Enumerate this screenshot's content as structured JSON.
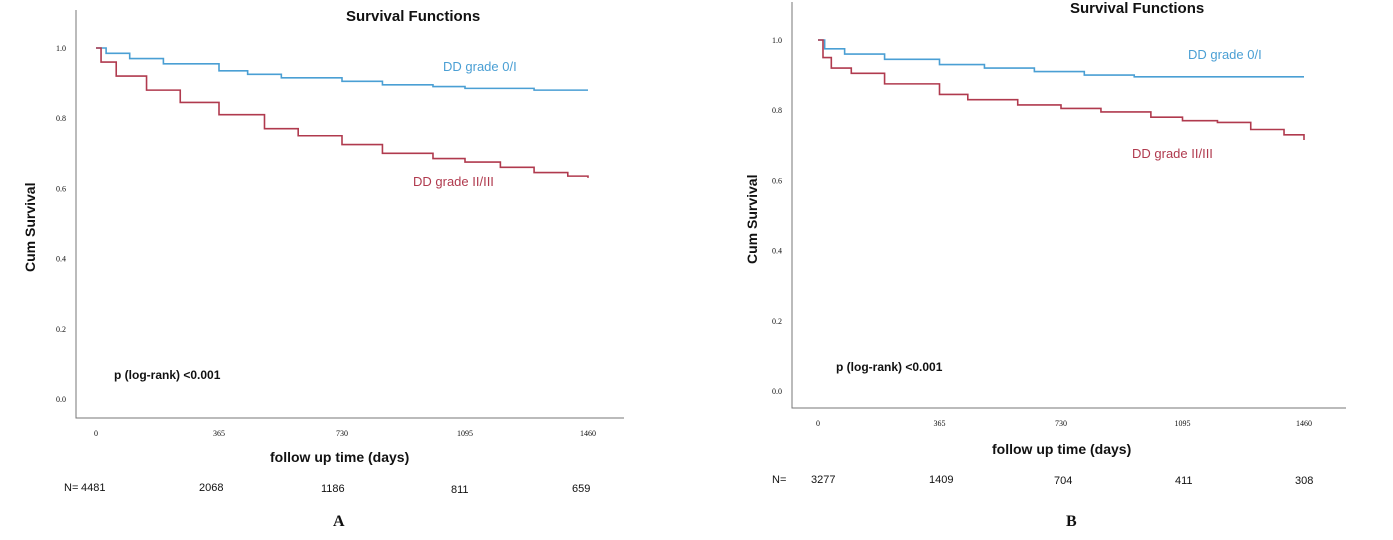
{
  "chart_data": [
    {
      "type": "line",
      "panel_label": "A",
      "title": "Survival Functions",
      "xlabel": "follow up time (days)",
      "ylabel": "Cum Survival",
      "xticks": [
        0,
        365,
        730,
        1095,
        1460
      ],
      "yticks": [
        "0.0",
        "0.2",
        "0.4",
        "0.6",
        "0.8",
        "1.0"
      ],
      "xlim": [
        0,
        1460
      ],
      "ylim": [
        0.0,
        1.0
      ],
      "annotation": "p (log-rank) <0.001",
      "colors": {
        "grade_0_1": "#4a9fd4",
        "grade_2_3": "#b03a4e"
      },
      "series": [
        {
          "name": "DD grade 0/I",
          "x": [
            0,
            30,
            100,
            200,
            365,
            450,
            550,
            730,
            850,
            1000,
            1095,
            1300,
            1460
          ],
          "y": [
            1.0,
            0.985,
            0.97,
            0.955,
            0.935,
            0.925,
            0.915,
            0.905,
            0.895,
            0.89,
            0.885,
            0.88,
            0.88
          ]
        },
        {
          "name": "DD grade II/III",
          "x": [
            0,
            15,
            60,
            150,
            250,
            365,
            500,
            600,
            730,
            850,
            1000,
            1095,
            1200,
            1300,
            1400,
            1460
          ],
          "y": [
            1.0,
            0.96,
            0.92,
            0.88,
            0.845,
            0.81,
            0.77,
            0.75,
            0.725,
            0.7,
            0.685,
            0.675,
            0.66,
            0.645,
            0.635,
            0.63
          ]
        }
      ],
      "risk_table": {
        "label": "N=",
        "counts": [
          "4481",
          "2068",
          "1186",
          "811",
          "659"
        ]
      }
    },
    {
      "type": "line",
      "panel_label": "B",
      "title": "Survival Functions",
      "xlabel": "follow up time (days)",
      "ylabel": "Cum Survival",
      "xticks": [
        0,
        365,
        730,
        1095,
        1460
      ],
      "yticks": [
        "0.0",
        "0.2",
        "0.4",
        "0.6",
        "0.8",
        "1.0"
      ],
      "xlim": [
        0,
        1460
      ],
      "ylim": [
        0.0,
        1.0
      ],
      "annotation": "p (log-rank) <0.001",
      "colors": {
        "grade_0_1": "#4a9fd4",
        "grade_2_3": "#b03a4e"
      },
      "series": [
        {
          "name": "DD grade 0/I",
          "x": [
            0,
            20,
            80,
            200,
            365,
            500,
            650,
            800,
            950,
            1100,
            1300,
            1460
          ],
          "y": [
            1.0,
            0.975,
            0.96,
            0.945,
            0.93,
            0.92,
            0.91,
            0.9,
            0.895,
            0.895,
            0.895,
            0.895
          ]
        },
        {
          "name": "DD grade II/III",
          "x": [
            0,
            15,
            40,
            100,
            200,
            365,
            450,
            600,
            730,
            850,
            1000,
            1095,
            1200,
            1300,
            1400,
            1460
          ],
          "y": [
            1.0,
            0.95,
            0.92,
            0.905,
            0.875,
            0.845,
            0.83,
            0.815,
            0.805,
            0.795,
            0.78,
            0.77,
            0.765,
            0.745,
            0.73,
            0.715
          ]
        }
      ],
      "risk_table": {
        "label": "N=",
        "counts": [
          "3277",
          "1409",
          "704",
          "411",
          "308"
        ]
      }
    }
  ]
}
